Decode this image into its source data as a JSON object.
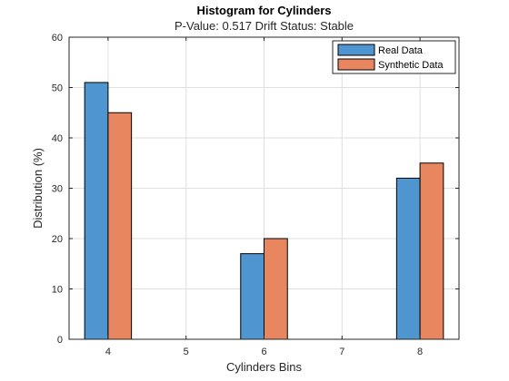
{
  "chart_data": {
    "type": "bar",
    "title": "Histogram for Cylinders",
    "subtitle": "P-Value: 0.517 Drift Status: Stable",
    "xlabel": "Cylinders Bins",
    "ylabel": "Distribution (%)",
    "categories": [
      "4",
      "5",
      "6",
      "7",
      "8"
    ],
    "series": [
      {
        "name": "Real Data",
        "color": "#4f95cf",
        "values": [
          51,
          0,
          17,
          0,
          32
        ]
      },
      {
        "name": "Synthetic Data",
        "color": "#e7865f",
        "values": [
          45,
          0,
          20,
          0,
          35
        ]
      }
    ],
    "ylim": [
      0,
      60
    ],
    "yticks": [
      0,
      10,
      20,
      30,
      40,
      50,
      60
    ],
    "grid": true,
    "legend_position": "top-right"
  }
}
